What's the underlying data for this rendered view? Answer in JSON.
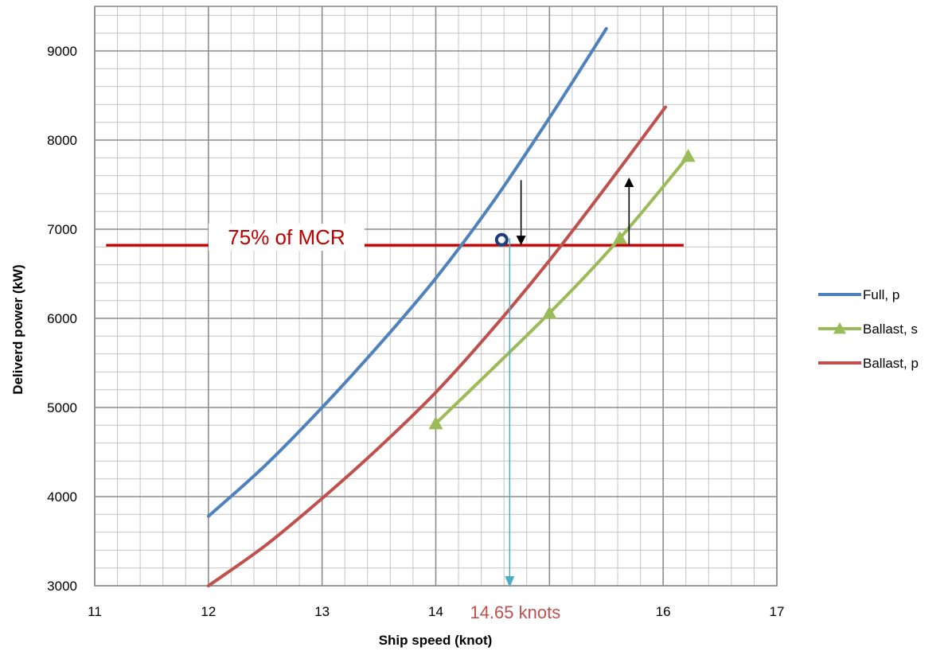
{
  "chart_data": {
    "type": "line",
    "title": "",
    "xlabel": "Ship speed (knot)",
    "ylabel": "Deliverd power (kW)",
    "xlim": [
      11,
      17
    ],
    "ylim": [
      3000,
      9500
    ],
    "x_ticks": [
      11,
      12,
      13,
      14,
      15,
      16,
      17
    ],
    "y_ticks": [
      3000,
      4000,
      5000,
      6000,
      7000,
      8000,
      9000
    ],
    "x_tick_labels": [
      "11",
      "12",
      "13",
      "14",
      "",
      "16",
      "17"
    ],
    "grid": true,
    "legend_position": "right",
    "series": [
      {
        "name": "Full, p",
        "color": "#4f81bd",
        "marker": "none",
        "points": [
          [
            12.0,
            3780
          ],
          [
            12.5,
            4350
          ],
          [
            13.0,
            5000
          ],
          [
            13.5,
            5700
          ],
          [
            14.0,
            6450
          ],
          [
            14.5,
            7300
          ],
          [
            15.0,
            8250
          ],
          [
            15.5,
            9250
          ]
        ]
      },
      {
        "name": "Ballast, s",
        "color": "#9bbb59",
        "marker": "triangle",
        "points": [
          [
            14.0,
            4820
          ],
          [
            15.0,
            6060
          ],
          [
            15.62,
            6900
          ],
          [
            16.22,
            7820
          ]
        ]
      },
      {
        "name": "Ballast, p",
        "color": "#c0504d",
        "marker": "none",
        "points": [
          [
            12.0,
            3000
          ],
          [
            12.5,
            3450
          ],
          [
            13.0,
            3980
          ],
          [
            13.5,
            4550
          ],
          [
            14.0,
            5170
          ],
          [
            14.5,
            5880
          ],
          [
            15.0,
            6650
          ],
          [
            15.5,
            7480
          ],
          [
            16.02,
            8370
          ]
        ]
      }
    ],
    "reference_line": {
      "label": "75% of MCR",
      "y": 6820,
      "x_range": [
        11.1,
        16.18
      ],
      "color": "#c00000"
    },
    "annotations": {
      "operating_point": {
        "x": 14.65,
        "y": 6900
      },
      "speed_marker": {
        "x": 14.65,
        "label": "14.65 knots",
        "color": "#4bacc6",
        "label_color": "#c0504d"
      },
      "arrow_down": {
        "x": 14.75,
        "y_from": 7550,
        "y_to": 6820
      },
      "arrow_up": {
        "x": 15.7,
        "y_from": 6820,
        "y_to": 7580
      }
    }
  }
}
